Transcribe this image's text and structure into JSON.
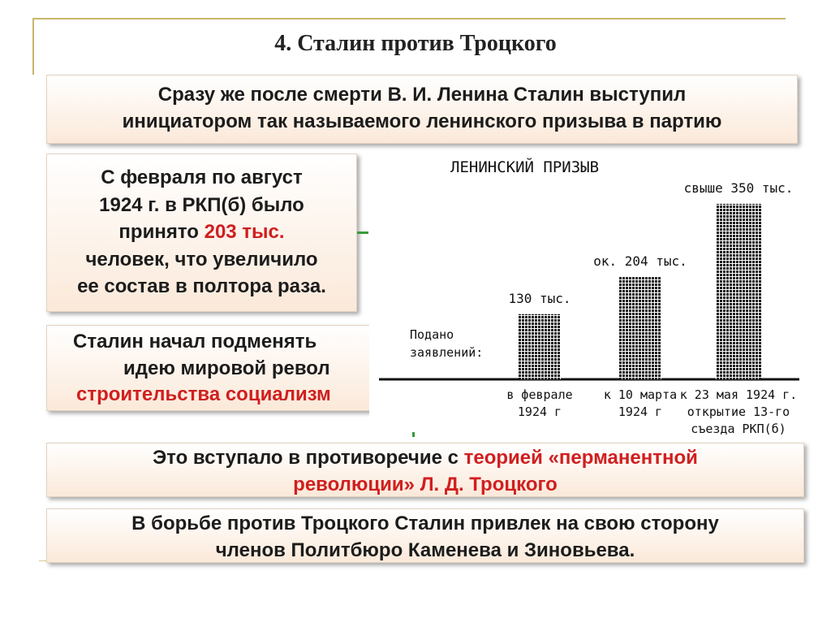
{
  "slide": {
    "title": "4. Сталин против Троцкого"
  },
  "boxes": {
    "intro": {
      "line1": "Сразу же после смерти В. И. Ленина Сталин выступил",
      "line2": "инициатором так называемого ленинского призыва в партию"
    },
    "stats": {
      "line1": "С февраля по август",
      "line2": "1924 г. в РКП(б) было",
      "line3_pre": "принято ",
      "line3_highlight": "203 тыс.",
      "line4": "человек, что увеличило",
      "line5": "ее состав в полтора раза."
    },
    "stalin": {
      "line1": "Сталин начал подменять",
      "line2": "идею мировой револ",
      "line3": "строительства социализм"
    },
    "contradiction": {
      "line1_pre": "Это вступало в противоречие с ",
      "line1_highlight": "теорией «перманентной",
      "line2_highlight": "революции» Л. Д. Троцкого"
    },
    "struggle": {
      "line1": "В борьбе против Троцкого Сталин привлек на свою сторону",
      "line2": "членов Политбюро Каменева и Зиновьева."
    }
  },
  "colors": {
    "highlight": "#d01f1f",
    "frame": "#c9b56a",
    "box_gradient_end": "#fbe9d9"
  },
  "chart_data": {
    "type": "bar",
    "title": "ЛЕНИНСКИЙ ПРИЗЫВ",
    "ylabel": [
      "Подано",
      "заявлений:"
    ],
    "categories": [
      [
        "в феврале",
        "1924 г"
      ],
      [
        "к 10 марта",
        "1924 г"
      ],
      [
        "к 23 мая 1924 г.",
        "открытие 13-го",
        "съезда РКП(б)"
      ]
    ],
    "values": [
      130,
      204,
      350
    ],
    "value_labels": [
      "130 тыс.",
      "ок. 204 тыс.",
      "свыше 350 тыс."
    ],
    "unit": "тыс.",
    "ylim": [
      0,
      350
    ],
    "grid": false
  }
}
